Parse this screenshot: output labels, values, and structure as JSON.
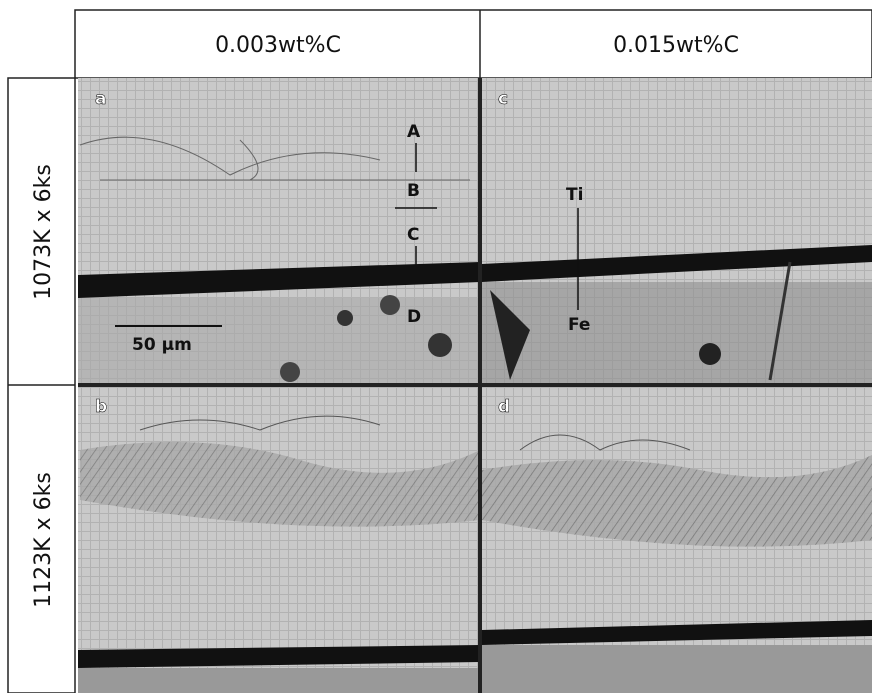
{
  "columns": [
    "0.003wt%C",
    "0.015wt%C"
  ],
  "rows": [
    "1073K x 6ks",
    "1123K x 6ks"
  ],
  "panels": [
    {
      "label": "a",
      "annotations": [
        "A",
        "B",
        "C",
        "D"
      ],
      "scale_bar": "50 μm"
    },
    {
      "label": "c",
      "annotations": [
        "Ti",
        "Fe"
      ]
    },
    {
      "label": "b"
    },
    {
      "label": "d"
    }
  ]
}
